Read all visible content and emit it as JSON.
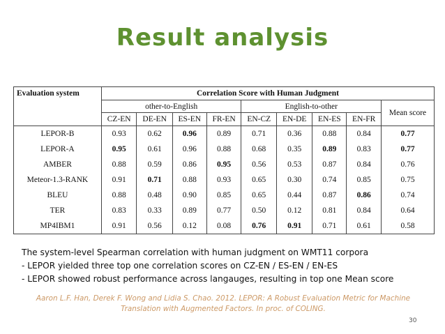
{
  "title": "Result analysis",
  "table": {
    "corner_header": "Evaluation system",
    "group_header": "Correlation Score with Human Judgment",
    "subgroups": [
      "other-to-English",
      "English-to-other"
    ],
    "mean_header": "Mean score",
    "columns": [
      "CZ-EN",
      "DE-EN",
      "ES-EN",
      "FR-EN",
      "EN-CZ",
      "EN-DE",
      "EN-ES",
      "EN-FR"
    ],
    "rows": [
      {
        "system": "LEPOR-B",
        "values": [
          "0.93",
          "0.62",
          "0.96",
          "0.89",
          "0.71",
          "0.36",
          "0.88",
          "0.84"
        ],
        "mean": "0.77",
        "bold_cols": [
          2
        ],
        "mean_bold": true
      },
      {
        "system": "LEPOR-A",
        "values": [
          "0.95",
          "0.61",
          "0.96",
          "0.88",
          "0.68",
          "0.35",
          "0.89",
          "0.83"
        ],
        "mean": "0.77",
        "bold_cols": [
          0,
          6
        ],
        "mean_bold": true
      },
      {
        "system": "AMBER",
        "values": [
          "0.88",
          "0.59",
          "0.86",
          "0.95",
          "0.56",
          "0.53",
          "0.87",
          "0.84"
        ],
        "mean": "0.76",
        "bold_cols": [
          3
        ],
        "mean_bold": false
      },
      {
        "system": "Meteor-1.3-RANK",
        "values": [
          "0.91",
          "0.71",
          "0.88",
          "0.93",
          "0.65",
          "0.30",
          "0.74",
          "0.85"
        ],
        "mean": "0.75",
        "bold_cols": [
          1
        ],
        "mean_bold": false
      },
      {
        "system": "BLEU",
        "values": [
          "0.88",
          "0.48",
          "0.90",
          "0.85",
          "0.65",
          "0.44",
          "0.87",
          "0.86"
        ],
        "mean": "0.74",
        "bold_cols": [
          7
        ],
        "mean_bold": false
      },
      {
        "system": "TER",
        "values": [
          "0.83",
          "0.33",
          "0.89",
          "0.77",
          "0.50",
          "0.12",
          "0.81",
          "0.84"
        ],
        "mean": "0.64",
        "bold_cols": [],
        "mean_bold": false
      },
      {
        "system": "MP4IBM1",
        "values": [
          "0.91",
          "0.56",
          "0.12",
          "0.08",
          "0.76",
          "0.91",
          "0.71",
          "0.61"
        ],
        "mean": "0.58",
        "bold_cols": [
          4,
          5
        ],
        "mean_bold": false
      }
    ]
  },
  "summary": [
    "The system-level Spearman correlation with human judgment on WMT11 corpora",
    "- LEPOR yielded three top one correlation scores on CZ-EN / ES-EN / EN-ES",
    "- LEPOR showed robust performance across langauges, resulting in top one Mean score"
  ],
  "citation": [
    "Aaron L.F. Han, Derek F. Wong and Lidia S. Chao. 2012. LEPOR: A Robust Evaluation Metric for Machine",
    "Translation with Augmented Factors. In proc. of COLING."
  ],
  "page_number": "30",
  "colors": {
    "title": "#5e9130",
    "citation": "#cc9966"
  }
}
